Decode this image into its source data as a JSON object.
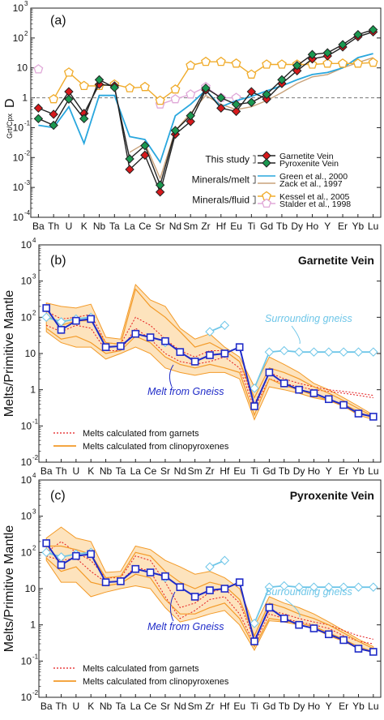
{
  "elements": [
    "Ba",
    "Th",
    "U",
    "K",
    "Nb",
    "Ta",
    "La",
    "Ce",
    "Sr",
    "Nd",
    "Sm",
    "Zr",
    "Hf",
    "Eu",
    "Ti",
    "Gd",
    "Tb",
    "Dy",
    "Ho",
    "Y",
    "Er",
    "Yb",
    "Lu"
  ],
  "colors": {
    "garnetite": "#d7191c",
    "pyroxenite": "#1a9850",
    "green2000": "#29a7de",
    "zack1997": "#c8a27a",
    "kessel2005": "#f0ab2a",
    "stalder1998": "#e0a8d8",
    "gneiss": "#6ec6e8",
    "gneissMelt": "#1f2bc8",
    "garnetMelt": "#e41a1c",
    "cpxMelt": "#f39a27",
    "envelope": "#fde3bd"
  },
  "chart_data": [
    {
      "panel": "(a)",
      "type": "line",
      "log_scale": true,
      "ylim": [
        0.0001,
        1000
      ],
      "ylabel_main": "D",
      "ylabel_sub": "Grt/Cpx",
      "x": [
        "Ba",
        "Th",
        "U",
        "K",
        "Nb",
        "Ta",
        "La",
        "Ce",
        "Sr",
        "Nd",
        "Sm",
        "Zr",
        "Hf",
        "Eu",
        "Ti",
        "Gd",
        "Tb",
        "Dy",
        "Ho",
        "Y",
        "Er",
        "Yb",
        "Lu"
      ],
      "reference_line": 1,
      "legend_groups": [
        {
          "label": "This study",
          "items": [
            "Garnetite Vein",
            "Pyroxenite Vein"
          ]
        },
        {
          "label": "Minerals/melt",
          "items": [
            "Green et al., 2000",
            "Zack et al., 1997"
          ]
        },
        {
          "label": "Minerals/fluid",
          "items": [
            "Kessel et al., 2005",
            "Stalder et al., 1998"
          ]
        }
      ],
      "series": [
        {
          "name": "Garnetite Vein",
          "key": "garnetite",
          "marker": "diamond",
          "values": [
            0.45,
            0.28,
            1.6,
            0.3,
            2.8,
            2.5,
            0.004,
            0.012,
            0.0007,
            0.06,
            0.16,
            1.8,
            0.45,
            0.35,
            1.6,
            0.9,
            3,
            8,
            20,
            25,
            50,
            110,
            160
          ]
        },
        {
          "name": "Pyroxenite Vein",
          "key": "pyroxenite",
          "marker": "diamond",
          "values": [
            0.2,
            0.12,
            0.9,
            0.2,
            4,
            2.2,
            0.009,
            0.025,
            0.0012,
            0.08,
            0.25,
            2.1,
            1,
            0.6,
            0.7,
            1.3,
            4,
            12,
            28,
            32,
            60,
            130,
            190
          ]
        },
        {
          "name": "Green et al., 2000",
          "key": "green2000",
          "marker": null,
          "values": [
            0.12,
            0.1,
            0.5,
            0.03,
            1.2,
            1.2,
            0.05,
            0.04,
            0.007,
            0.25,
            0.6,
            1.8,
            0.5,
            0.8,
            1.1,
            1.7,
            2.5,
            4,
            6,
            7,
            10,
            22,
            30
          ]
        },
        {
          "name": "Zack et al., 1997",
          "key": "zack1997",
          "marker": null,
          "values": [
            null,
            null,
            null,
            null,
            null,
            null,
            0.015,
            0.03,
            0.002,
            0.08,
            0.3,
            1.2,
            0.6,
            0.4,
            0.5,
            0.8,
            1.5,
            3,
            5,
            6,
            10,
            15,
            22
          ]
        },
        {
          "name": "Kessel et al., 2005",
          "key": "kessel2005",
          "marker": "pentagon",
          "values": [
            null,
            0.9,
            7,
            2.5,
            2.5,
            2.8,
            2.1,
            2.3,
            0.8,
            1.9,
            12,
            16,
            16,
            14,
            6,
            13,
            13,
            13,
            13,
            14,
            14,
            14,
            15
          ]
        },
        {
          "name": "Stalder et al., 1998",
          "key": "stalder1998",
          "marker": "pentagon",
          "values": [
            9,
            null,
            null,
            null,
            null,
            null,
            null,
            null,
            0.6,
            0.9,
            1.3,
            2.3,
            1,
            1,
            null,
            null,
            null,
            null,
            null,
            null,
            null,
            null,
            null
          ]
        }
      ]
    },
    {
      "panel": "(b)",
      "title": "Garnetite Vein",
      "type": "line",
      "log_scale": true,
      "ylim": [
        0.01,
        10000
      ],
      "ylabel": "Melts/Primitive Mantle",
      "x": [
        "Ba",
        "Th",
        "U",
        "K",
        "Nb",
        "Ta",
        "La",
        "Ce",
        "Sr",
        "Nd",
        "Sm",
        "Zr",
        "Hf",
        "Eu",
        "Ti",
        "Gd",
        "Tb",
        "Dy",
        "Ho",
        "Y",
        "Er",
        "Yb",
        "Lu"
      ],
      "annotations": [
        "Surrounding gneiss",
        "Melt from Gneiss"
      ],
      "legend": [
        "Melts calculated from garnets",
        "Melts calculated from clinopyroxenes"
      ],
      "cpx_envelope": {
        "lower": [
          40,
          20,
          15,
          15,
          7,
          10,
          15,
          10,
          4,
          3,
          2.5,
          3,
          3,
          2,
          0.15,
          1.2,
          1,
          0.8,
          0.6,
          0.5,
          0.35,
          0.2,
          0.15
        ],
        "upper": [
          250,
          200,
          180,
          230,
          28,
          25,
          800,
          300,
          200,
          50,
          25,
          35,
          15,
          8,
          1.2,
          8,
          5,
          3,
          1.5,
          1,
          0.6,
          0.35,
          0.2
        ]
      },
      "series": [
        {
          "name": "Surrounding gneiss",
          "key": "gneiss",
          "marker": "diamond",
          "values": [
            100,
            75,
            90,
            100,
            null,
            null,
            null,
            null,
            20,
            null,
            null,
            40,
            60,
            null,
            1.1,
            11,
            12,
            11,
            11,
            11,
            11,
            11,
            11
          ]
        },
        {
          "name": "Melt from Gneiss",
          "key": "gneissMelt",
          "marker": "square",
          "values": [
            180,
            45,
            80,
            90,
            15,
            16,
            35,
            28,
            22,
            11,
            6,
            9,
            10,
            15,
            0.35,
            3,
            1.5,
            1,
            0.8,
            0.55,
            0.38,
            0.22,
            0.18
          ]
        },
        {
          "name": "Melts calculated from garnets",
          "key": "garnetMelt",
          "style": "dotted",
          "values": [
            150,
            90,
            100,
            120,
            20,
            18,
            100,
            60,
            25,
            12,
            8,
            12,
            12,
            6,
            0.4,
            3,
            2,
            1.5,
            1.2,
            1,
            0.9,
            0.8,
            0.7
          ]
        },
        {
          "name": "Melts calculated from garnets",
          "key": "garnetMelt",
          "style": "dotted",
          "values": [
            60,
            40,
            60,
            50,
            12,
            12,
            50,
            25,
            10,
            6,
            5,
            6,
            8,
            4,
            0.3,
            2,
            1.5,
            1.2,
            1,
            0.9,
            0.8,
            0.7,
            0.6
          ]
        },
        {
          "name": "Melts calculated from clinopyroxenes",
          "key": "cpxMelt",
          "style": "solid",
          "values": [
            120,
            60,
            80,
            80,
            20,
            18,
            600,
            200,
            100,
            40,
            15,
            20,
            12,
            6,
            0.6,
            4,
            3,
            2,
            1.2,
            0.8,
            0.5,
            0.3,
            0.18
          ]
        },
        {
          "name": "Melts calculated from clinopyroxenes",
          "key": "cpxMelt",
          "style": "solid",
          "values": [
            50,
            25,
            30,
            20,
            10,
            12,
            30,
            20,
            8,
            5,
            4,
            5,
            4,
            3,
            0.2,
            2,
            1.3,
            1,
            0.7,
            0.5,
            0.4,
            0.25,
            0.16
          ]
        }
      ]
    },
    {
      "panel": "(c)",
      "title": "Pyroxenite Vein",
      "type": "line",
      "log_scale": true,
      "ylim": [
        0.01,
        10000
      ],
      "ylabel": "Melts/Primitive Mantle",
      "x": [
        "Ba",
        "Th",
        "U",
        "K",
        "Nb",
        "Ta",
        "La",
        "Ce",
        "Sr",
        "Nd",
        "Sm",
        "Zr",
        "Hf",
        "Eu",
        "Ti",
        "Gd",
        "Tb",
        "Dy",
        "Ho",
        "Y",
        "Er",
        "Yb",
        "Lu"
      ],
      "annotations": [
        "Surrounding gneiss",
        "Melt from Gneiss"
      ],
      "legend": [
        "Melts calculated from garnets",
        "Melts calculated from clinopyroxenes"
      ],
      "cpx_envelope": {
        "lower": [
          60,
          15,
          15,
          6,
          8,
          10,
          12,
          10,
          3,
          1.2,
          1.5,
          2,
          2.5,
          1,
          0.2,
          1.3,
          1.2,
          1,
          0.8,
          0.5,
          0.35,
          0.22,
          0.17
        ],
        "upper": [
          250,
          500,
          250,
          200,
          28,
          30,
          150,
          120,
          60,
          40,
          25,
          30,
          20,
          10,
          0.9,
          6,
          4,
          3,
          2,
          1.2,
          0.7,
          0.4,
          0.25
        ]
      },
      "series": [
        {
          "name": "Surrounding gneiss",
          "key": "gneiss",
          "marker": "diamond",
          "values": [
            100,
            75,
            90,
            100,
            null,
            null,
            null,
            null,
            20,
            null,
            null,
            40,
            60,
            null,
            1.1,
            11,
            12,
            11,
            11,
            11,
            11,
            11,
            11
          ]
        },
        {
          "name": "Melt from Gneiss",
          "key": "gneissMelt",
          "marker": "square",
          "values": [
            180,
            45,
            80,
            90,
            15,
            16,
            35,
            28,
            22,
            11,
            6,
            9,
            10,
            15,
            0.35,
            3,
            1.5,
            1,
            0.8,
            0.55,
            0.38,
            0.22,
            0.18
          ]
        },
        {
          "name": "Melts calculated from garnets",
          "key": "garnetMelt",
          "style": "dotted",
          "values": [
            100,
            200,
            100,
            60,
            20,
            20,
            80,
            60,
            15,
            3,
            4,
            8,
            10,
            4,
            0.4,
            2.5,
            2,
            1.5,
            1.2,
            1,
            0.7,
            0.5,
            0.4
          ]
        },
        {
          "name": "Melts calculated from garnets",
          "key": "garnetMelt",
          "style": "dotted",
          "values": [
            80,
            60,
            70,
            30,
            15,
            16,
            40,
            30,
            6,
            1.5,
            2.5,
            5,
            6,
            2,
            0.3,
            2,
            1.5,
            1.2,
            1,
            0.8,
            0.5,
            0.35,
            0.3
          ]
        },
        {
          "name": "Melts calculated from clinopyroxenes",
          "key": "cpxMelt",
          "style": "solid",
          "values": [
            150,
            150,
            120,
            90,
            20,
            22,
            100,
            80,
            30,
            15,
            10,
            15,
            12,
            5,
            0.5,
            4,
            3,
            2,
            1.5,
            1,
            0.6,
            0.35,
            0.22
          ]
        },
        {
          "name": "Melts calculated from clinopyroxenes",
          "key": "cpxMelt",
          "style": "solid",
          "values": [
            70,
            30,
            40,
            15,
            12,
            14,
            25,
            20,
            5,
            2,
            2,
            3,
            4,
            1.5,
            0.25,
            1.5,
            1.3,
            1.1,
            0.9,
            0.6,
            0.4,
            0.25,
            0.18
          ]
        }
      ]
    }
  ]
}
